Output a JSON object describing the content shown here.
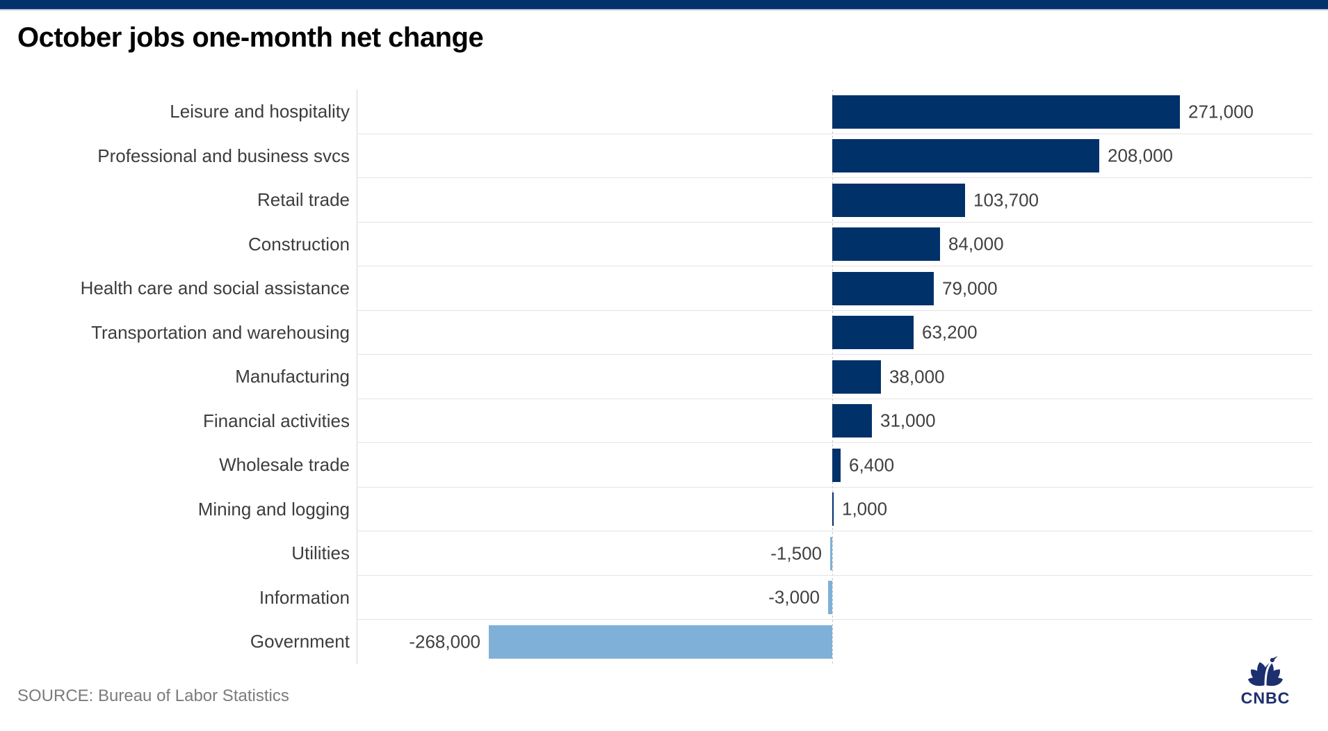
{
  "header": {
    "title": "October jobs one-month net change"
  },
  "footer": {
    "source": "SOURCE: Bureau of Labor Statistics",
    "logo_text": "CNBC"
  },
  "colors": {
    "topbar": "#03316b",
    "positive_bar": "#003169",
    "negative_bar": "#7fb0d7",
    "gridline": "#e4e4e4",
    "zero_line": "#c4c4c4",
    "axis_line": "#d4d4d4",
    "category_label": "#3d3d3d",
    "value_label": "#404040",
    "source_text": "#7b7b7b",
    "logo_navy": "#1c2f6e"
  },
  "chart_data": {
    "type": "bar",
    "orientation": "horizontal",
    "title": "October jobs one-month net change",
    "xlabel": "",
    "ylabel": "",
    "xlim": [
      -370000,
      374000
    ],
    "grid": "row-separators-only",
    "legend": "none",
    "zero_baseline": "dashed-vertical",
    "categories": [
      "Leisure and hospitality",
      "Professional and business svcs",
      "Retail trade",
      "Construction",
      "Health care and social assistance",
      "Transportation and warehousing",
      "Manufacturing",
      "Financial activities",
      "Wholesale trade",
      "Mining and logging",
      "Utilities",
      "Information",
      "Government"
    ],
    "values": [
      271000,
      208000,
      103700,
      84000,
      79000,
      63200,
      38000,
      31000,
      6400,
      1000,
      -1500,
      -3000,
      -268000
    ],
    "value_labels": [
      "271,000",
      "208,000",
      "103,700",
      "84,000",
      "79,000",
      "63,200",
      "38,000",
      "31,000",
      "6,400",
      "1,000",
      "-1,500",
      "-3,000",
      "-268,000"
    ]
  }
}
